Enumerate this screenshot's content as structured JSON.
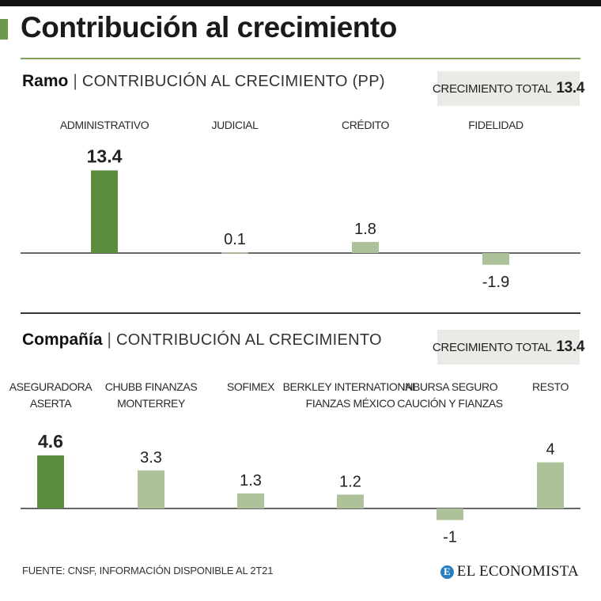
{
  "title": "Contribución al crecimiento",
  "colors": {
    "accent": "#5b8c3e",
    "light": "#adc29a",
    "rule": "#7ea35e"
  },
  "chart_data": [
    {
      "type": "bar",
      "section_title": "Ramo",
      "subtitle": "CONTRIBUCIÓN AL CRECIMIENTO (PP)",
      "total_label": "CRECIMIENTO TOTAL",
      "total_value": "13.4",
      "categories": [
        [
          "ADMINISTRATIVO"
        ],
        [
          "JUDICIAL"
        ],
        [
          "CRÉDITO"
        ],
        [
          "FIDELIDAD"
        ]
      ],
      "values": [
        13.4,
        0.1,
        1.8,
        -1.9
      ],
      "value_labels": [
        "13.4",
        "0.1",
        "1.8",
        "-1.9"
      ],
      "highlight_index": 0,
      "ylabel": "",
      "xlabel": ""
    },
    {
      "type": "bar",
      "section_title": "Compañía",
      "subtitle": "CONTRIBUCIÓN AL CRECIMIENTO",
      "total_label": "CRECIMIENTO TOTAL",
      "total_value": "13.4",
      "categories": [
        [
          "ASEGURADORA",
          "ASERTA"
        ],
        [
          "CHUBB FINANZAS",
          "MONTERREY"
        ],
        [
          "SOFIMEX"
        ],
        [
          "BERKLEY INTERNATIONAL",
          "FIANZAS MÉXICO"
        ],
        [
          "INBURSA SEGURO",
          "CAUCIÓN  Y FIANZAS"
        ],
        [
          "RESTO"
        ]
      ],
      "values": [
        4.6,
        3.3,
        1.3,
        1.2,
        -1,
        4
      ],
      "value_labels": [
        "4.6",
        "3.3",
        "1.3",
        "1.2",
        "-1",
        "4"
      ],
      "highlight_index": 0,
      "ylabel": "",
      "xlabel": ""
    }
  ],
  "footer": {
    "source": "FUENTE: CNSF, INFORMACIÓN DISPONIBLE AL 2T21",
    "brand": "EL ECONOMISTA",
    "brand_icon": "E"
  }
}
